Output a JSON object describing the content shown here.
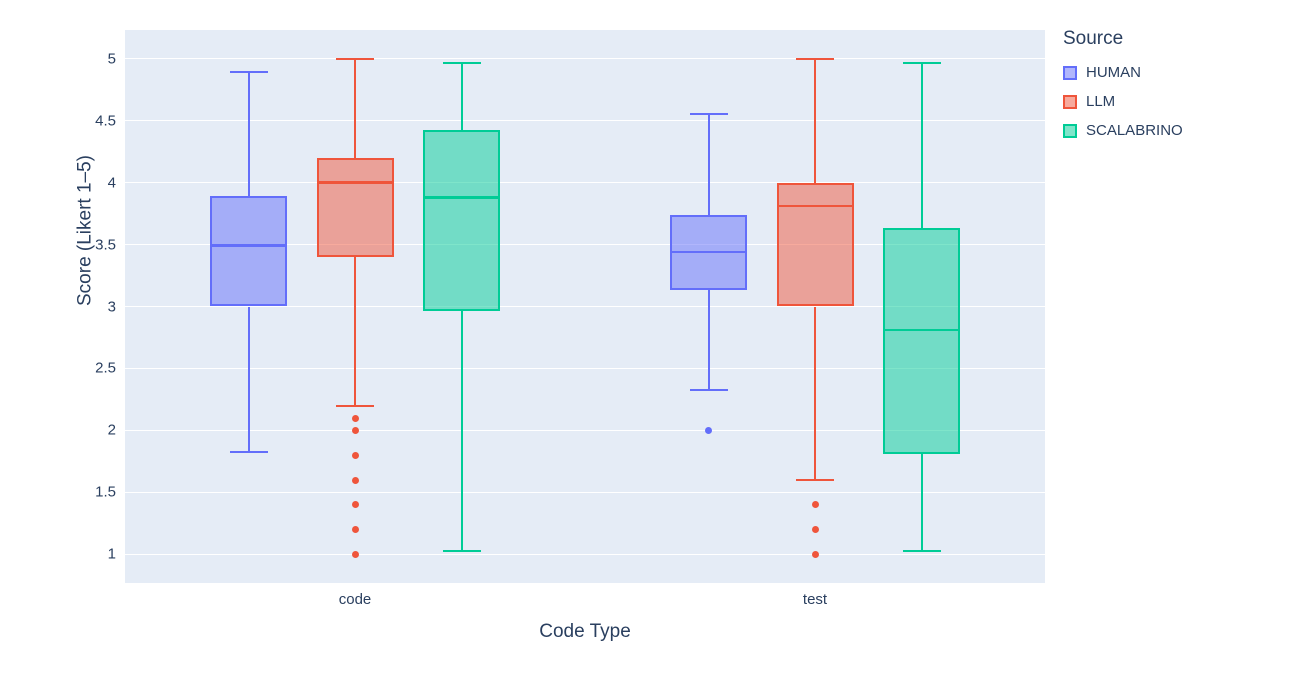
{
  "colors": {
    "plot_background": "#E5ECF6",
    "gridline": "#ffffff",
    "text": "#2a3f5f"
  },
  "legend": {
    "title": "Source",
    "items": [
      "HUMAN",
      "LLM",
      "SCALABRINO"
    ]
  },
  "chart_data": {
    "type": "box",
    "title": "",
    "xlabel": "Code Type",
    "ylabel": "Score (Likert 1–5)",
    "categories": [
      "code",
      "test"
    ],
    "yticks": [
      1,
      1.5,
      2,
      2.5,
      3,
      3.5,
      4,
      4.5,
      5
    ],
    "ylim": [
      0.77,
      5.23
    ],
    "grid": true,
    "legend_title": "Source",
    "legend_position": "top-right",
    "series": [
      {
        "name": "HUMAN",
        "color": "#636EFA",
        "boxes": [
          {
            "category": "code",
            "low": 1.83,
            "q1": 3.0,
            "median": 3.49,
            "q3": 3.89,
            "high": 4.89,
            "outliers": []
          },
          {
            "category": "test",
            "low": 2.33,
            "q1": 3.13,
            "median": 3.44,
            "q3": 3.74,
            "high": 4.55,
            "outliers": [
              2.0
            ]
          }
        ]
      },
      {
        "name": "LLM",
        "color": "#EF553B",
        "boxes": [
          {
            "category": "code",
            "low": 2.2,
            "q1": 3.4,
            "median": 4.0,
            "q3": 4.2,
            "high": 5.0,
            "outliers": [
              2.1,
              2.0,
              1.8,
              1.6,
              1.4,
              1.2,
              1.0
            ]
          },
          {
            "category": "test",
            "low": 1.6,
            "q1": 3.0,
            "median": 3.81,
            "q3": 4.0,
            "high": 5.0,
            "outliers": [
              1.4,
              1.2,
              1.0
            ]
          }
        ]
      },
      {
        "name": "SCALABRINO",
        "color": "#00CC96",
        "boxes": [
          {
            "category": "code",
            "low": 1.03,
            "q1": 2.96,
            "median": 3.88,
            "q3": 4.42,
            "high": 4.96,
            "outliers": []
          },
          {
            "category": "test",
            "low": 1.03,
            "q1": 1.81,
            "median": 2.81,
            "q3": 3.63,
            "high": 4.96,
            "outliers": []
          }
        ]
      }
    ]
  }
}
